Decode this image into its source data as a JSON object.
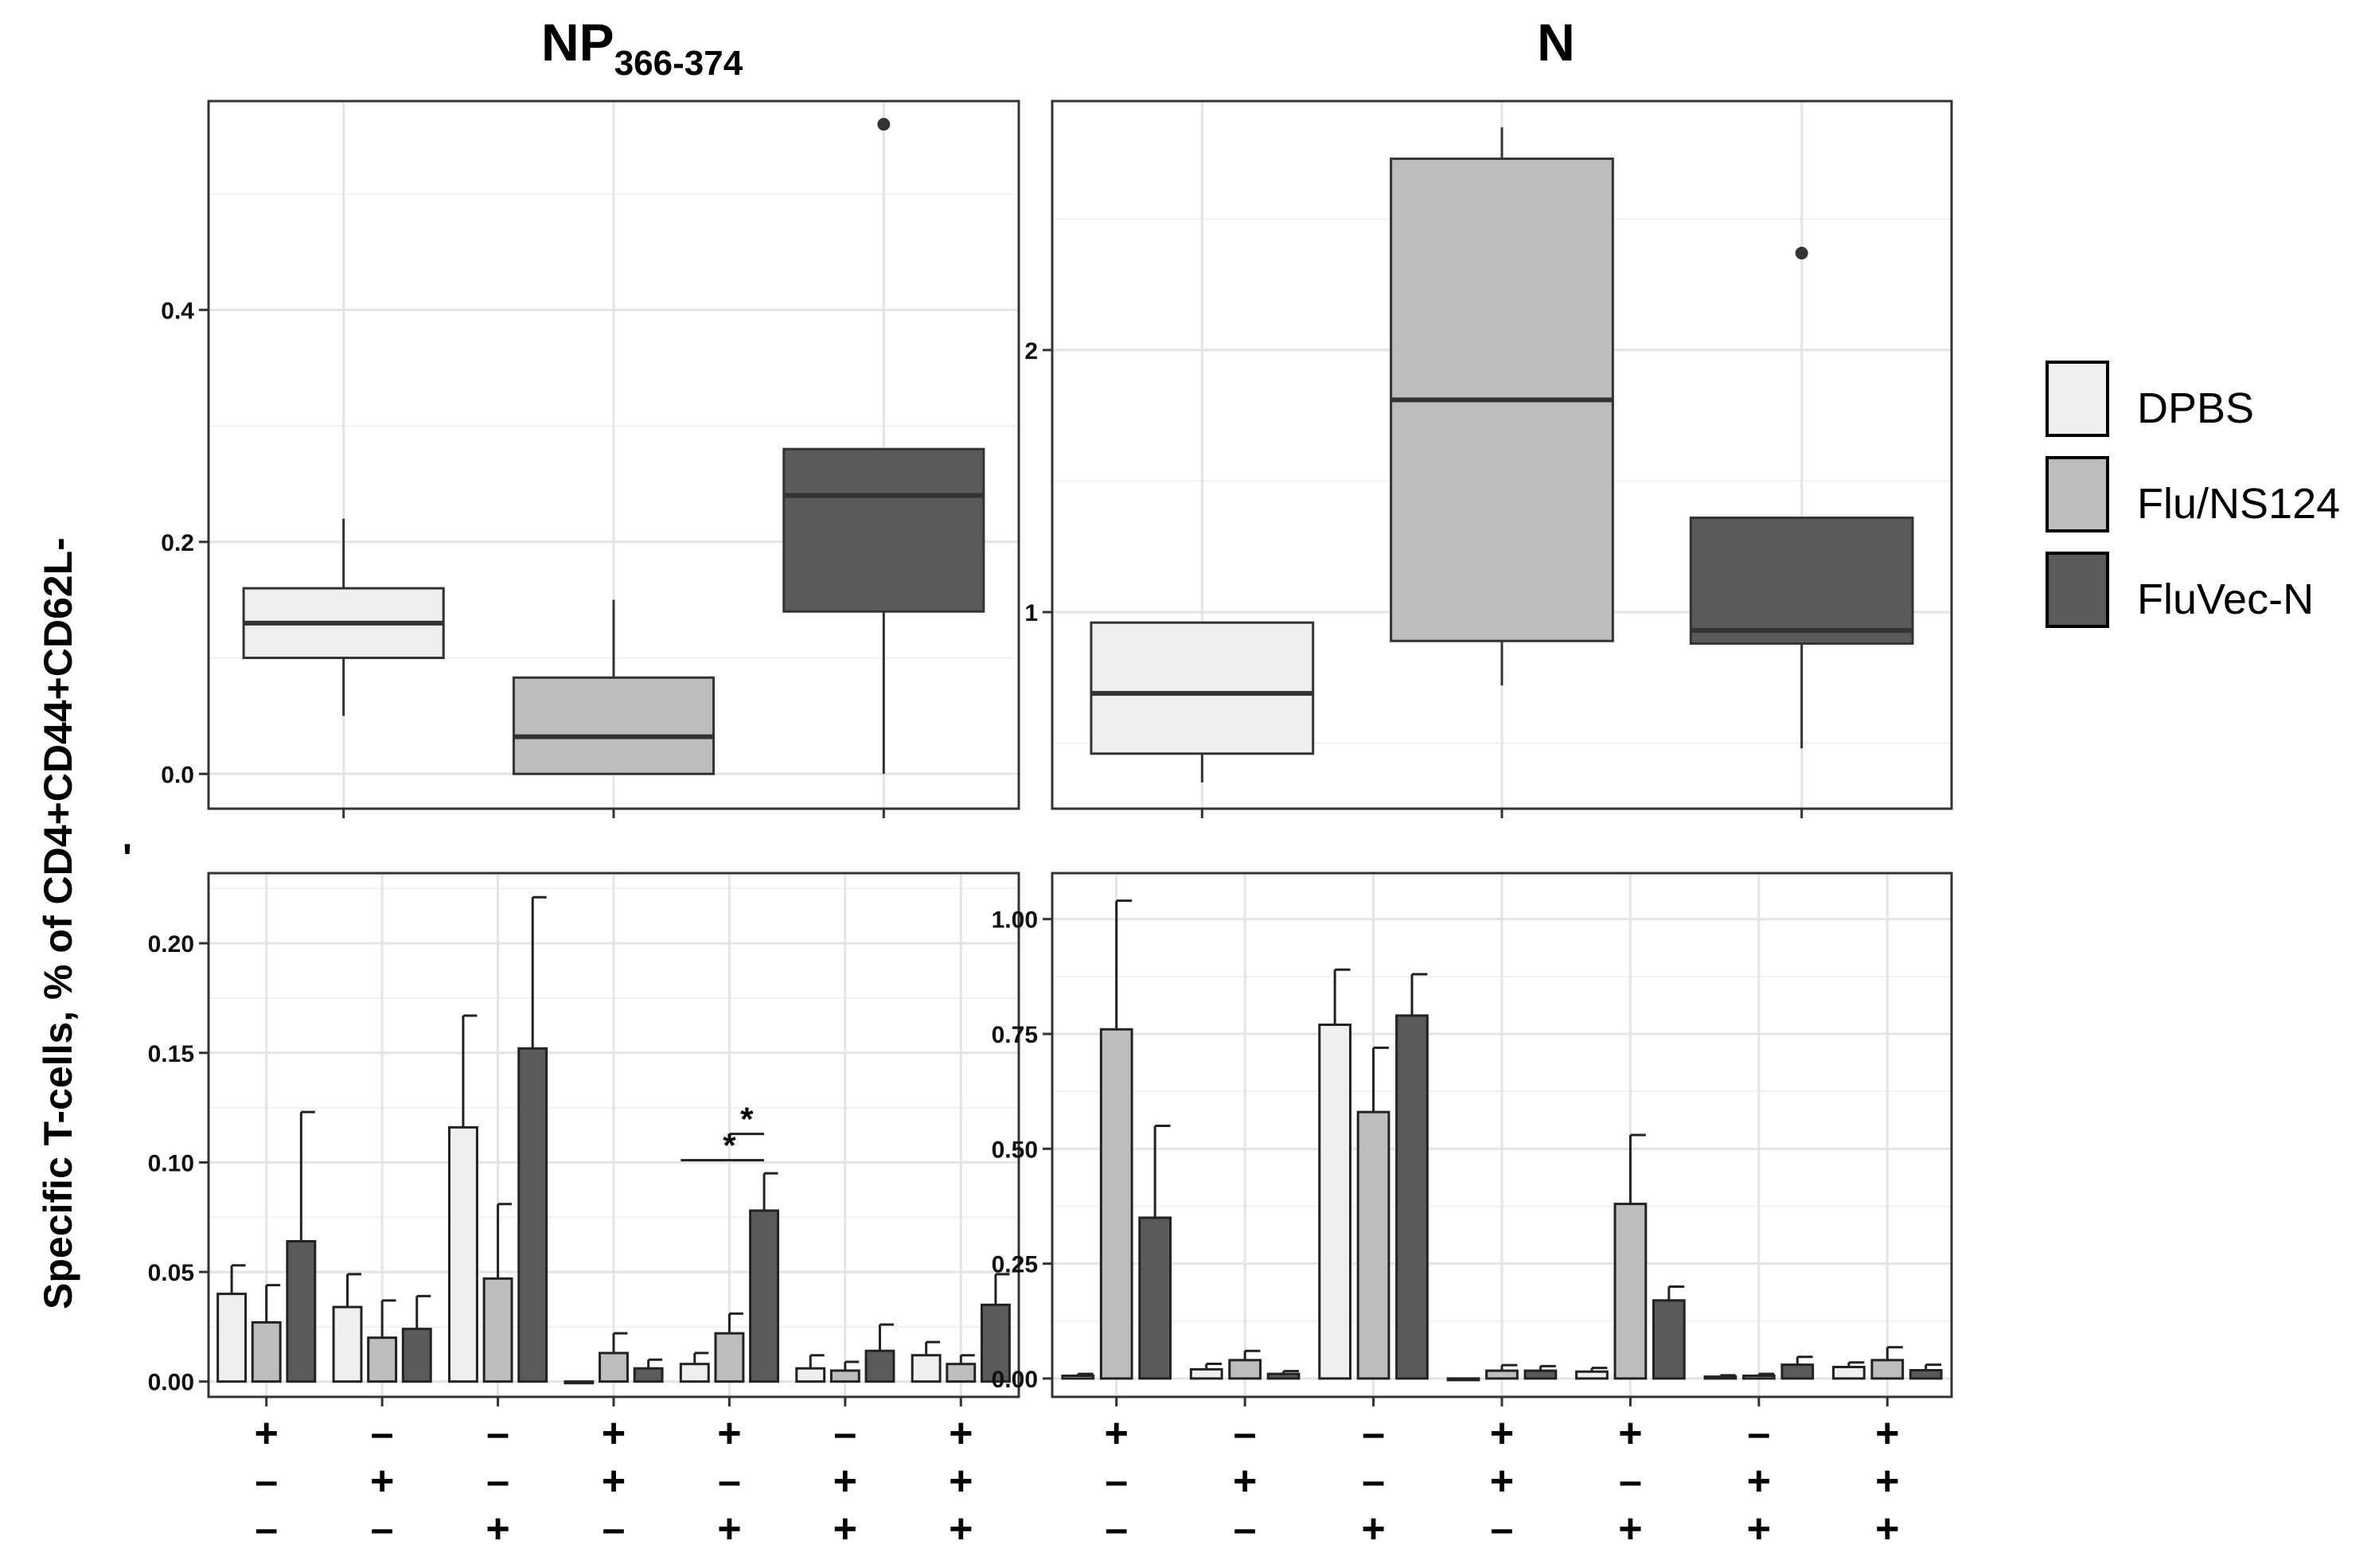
{
  "y_axis_label": "Specific  T-cells,  % of  CD4+CD44+CD62L-",
  "y_axis_mark": "'",
  "legend": [
    {
      "label": "DPBS",
      "color": "#efefef"
    },
    {
      "label": "Flu/NS124",
      "color": "#bdbdbd"
    },
    {
      "label": "FluVec-N",
      "color": "#5a5a5a"
    }
  ],
  "signs": {
    "rows": [
      [
        "+",
        "–",
        "–",
        "+",
        "+",
        "–",
        "+"
      ],
      [
        "–",
        "+",
        "–",
        "+",
        "–",
        "+",
        "+"
      ],
      [
        "–",
        "–",
        "+",
        "–",
        "+",
        "+",
        "+"
      ]
    ]
  },
  "chart_data": [
    {
      "type": "boxplot",
      "panel": "top-left",
      "title": "NP",
      "title_subscript": "366-374",
      "ylim": [
        -0.03,
        0.58
      ],
      "yticks": [
        0.0,
        0.2,
        0.4
      ],
      "ytick_labels": [
        "0.0",
        "0.2",
        "0.4"
      ],
      "groups": [
        {
          "name": "DPBS",
          "whisker_low": 0.05,
          "q1": 0.1,
          "median": 0.13,
          "q3": 0.16,
          "whisker_high": 0.22,
          "outliers": []
        },
        {
          "name": "Flu/NS124",
          "whisker_low": 0.0,
          "q1": 0.0,
          "median": 0.032,
          "q3": 0.083,
          "whisker_high": 0.15,
          "outliers": []
        },
        {
          "name": "FluVec-N",
          "whisker_low": 0.0,
          "q1": 0.14,
          "median": 0.24,
          "q3": 0.28,
          "whisker_high": 0.28,
          "outliers": [
            0.56
          ]
        }
      ]
    },
    {
      "type": "boxplot",
      "panel": "top-right",
      "title": "N",
      "ylim": [
        0.25,
        2.95
      ],
      "yticks": [
        1,
        2
      ],
      "ytick_labels": [
        "1",
        "2"
      ],
      "groups": [
        {
          "name": "DPBS",
          "whisker_low": 0.35,
          "q1": 0.46,
          "median": 0.69,
          "q3": 0.96,
          "whisker_high": 0.96,
          "outliers": []
        },
        {
          "name": "Flu/NS124",
          "whisker_low": 0.72,
          "q1": 0.89,
          "median": 1.81,
          "q3": 2.73,
          "whisker_high": 2.85,
          "outliers": []
        },
        {
          "name": "FluVec-N",
          "whisker_low": 0.48,
          "q1": 0.88,
          "median": 0.93,
          "q3": 1.36,
          "whisker_high": 1.36,
          "outliers": [
            2.37
          ]
        }
      ]
    },
    {
      "type": "bar",
      "panel": "bottom-left",
      "ylim": [
        -0.007,
        0.232
      ],
      "yticks": [
        0.0,
        0.05,
        0.1,
        0.15,
        0.2
      ],
      "ytick_labels": [
        "0.00",
        "0.05",
        "0.10",
        "0.15",
        "0.20"
      ],
      "series": [
        {
          "name": "DPBS",
          "values": [
            0.04,
            0.034,
            0.116,
            0.0,
            0.008,
            0.006,
            0.012
          ],
          "errors": [
            0.013,
            0.015,
            0.051,
            0.0,
            0.005,
            0.006,
            0.006
          ]
        },
        {
          "name": "Flu/NS124",
          "values": [
            0.027,
            0.02,
            0.047,
            0.013,
            0.022,
            0.005,
            0.008
          ],
          "errors": [
            0.017,
            0.017,
            0.034,
            0.009,
            0.009,
            0.004,
            0.004
          ]
        },
        {
          "name": "FluVec-N",
          "values": [
            0.064,
            0.024,
            0.152,
            0.006,
            0.078,
            0.014,
            0.035
          ],
          "errors": [
            0.059,
            0.015,
            0.069,
            0.004,
            0.017,
            0.012,
            0.014
          ]
        }
      ],
      "annotations": [
        "*",
        "*"
      ]
    },
    {
      "type": "bar",
      "panel": "bottom-right",
      "ylim": [
        -0.04,
        1.1
      ],
      "yticks": [
        0.0,
        0.25,
        0.5,
        0.75,
        1.0
      ],
      "ytick_labels": [
        "0.00",
        "0.25",
        "0.50",
        "0.75",
        "1.00"
      ],
      "series": [
        {
          "name": "DPBS",
          "values": [
            0.006,
            0.02,
            0.77,
            0.0,
            0.015,
            0.004,
            0.025
          ],
          "errors": [
            0.004,
            0.012,
            0.12,
            0.0,
            0.008,
            0.003,
            0.01
          ]
        },
        {
          "name": "Flu/NS124",
          "values": [
            0.76,
            0.04,
            0.58,
            0.017,
            0.38,
            0.006,
            0.04
          ],
          "errors": [
            0.28,
            0.02,
            0.14,
            0.012,
            0.15,
            0.004,
            0.028
          ]
        },
        {
          "name": "FluVec-N",
          "values": [
            0.35,
            0.01,
            0.79,
            0.017,
            0.17,
            0.03,
            0.018
          ],
          "errors": [
            0.2,
            0.006,
            0.09,
            0.01,
            0.03,
            0.017,
            0.012
          ]
        }
      ]
    }
  ]
}
